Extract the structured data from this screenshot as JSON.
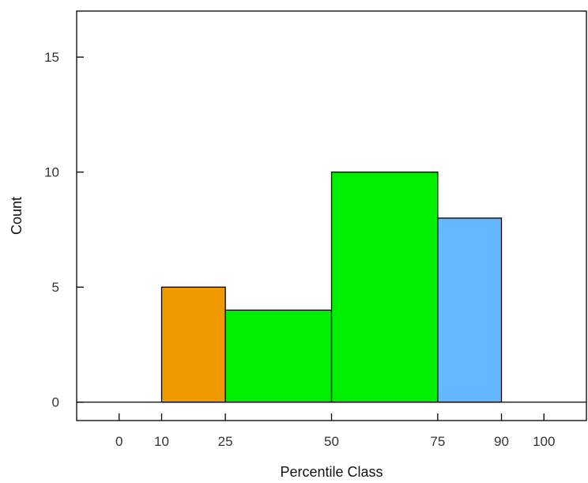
{
  "chart_data": {
    "type": "bar",
    "title": "",
    "xlabel": "Percentile Class",
    "ylabel": "Count",
    "xlim": [
      -10,
      110
    ],
    "ylim": [
      -0.8,
      17
    ],
    "x_ticks": [
      0,
      10,
      25,
      50,
      75,
      90,
      100
    ],
    "x_tick_labels": [
      "0",
      "10",
      "25",
      "50",
      "75",
      "90",
      "100"
    ],
    "y_ticks": [
      0,
      5,
      10,
      15
    ],
    "y_tick_labels": [
      "0",
      "5",
      "10",
      "15"
    ],
    "baseline": [
      -10,
      110
    ],
    "bins": [
      {
        "start": 10,
        "end": 25,
        "value": 5,
        "color": "#EE9A00"
      },
      {
        "start": 25,
        "end": 50,
        "value": 4,
        "color": "#00EE00"
      },
      {
        "start": 50,
        "end": 75,
        "value": 10,
        "color": "#00EE00"
      },
      {
        "start": 75,
        "end": 90,
        "value": 8,
        "color": "#63B8FF"
      }
    ],
    "grid": false,
    "legend": "none"
  }
}
